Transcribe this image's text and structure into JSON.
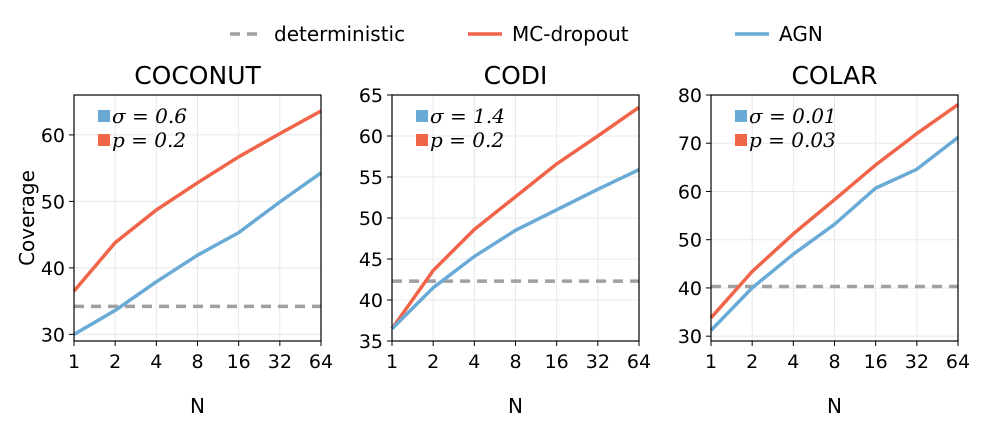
{
  "legend": {
    "items": [
      {
        "label": "deterministic",
        "color": "#a0a0a0",
        "style": "dashed"
      },
      {
        "label": "MC-dropout",
        "color": "#f06449",
        "style": "solid"
      },
      {
        "label": "AGN",
        "color": "#69aad6",
        "style": "solid"
      }
    ]
  },
  "chart_data": [
    {
      "type": "line",
      "title": "COCONUT",
      "xlabel": "N",
      "ylabel": "Coverage",
      "categories": [
        "1",
        "2",
        "4",
        "8",
        "16",
        "32",
        "64"
      ],
      "ylim": [
        29,
        66
      ],
      "yticks": [
        30,
        40,
        50,
        60
      ],
      "series": [
        {
          "name": "MC-dropout",
          "values": [
            36.5,
            43.8,
            48.7,
            52.8,
            56.7,
            60.2,
            63.6
          ]
        },
        {
          "name": "AGN",
          "values": [
            30.0,
            33.6,
            37.9,
            41.9,
            45.3,
            49.9,
            54.3
          ]
        }
      ],
      "deterministic": 34.2,
      "annotations": [
        {
          "text": "σ = 0.6",
          "color": "#69aad6"
        },
        {
          "text": "p = 0.2",
          "color": "#f06449"
        }
      ]
    },
    {
      "type": "line",
      "title": "CODI",
      "xlabel": "N",
      "ylabel": "",
      "categories": [
        "1",
        "2",
        "4",
        "8",
        "16",
        "32",
        "64"
      ],
      "ylim": [
        35,
        65
      ],
      "yticks": [
        35,
        40,
        45,
        50,
        55,
        60,
        65
      ],
      "series": [
        {
          "name": "MC-dropout",
          "values": [
            36.5,
            43.6,
            48.6,
            52.6,
            56.6,
            60.0,
            63.5
          ]
        },
        {
          "name": "AGN",
          "values": [
            36.5,
            41.5,
            45.3,
            48.5,
            51.0,
            53.5,
            55.9
          ]
        }
      ],
      "deterministic": 42.3,
      "annotations": [
        {
          "text": "σ = 1.4",
          "color": "#69aad6"
        },
        {
          "text": "p = 0.2",
          "color": "#f06449"
        }
      ]
    },
    {
      "type": "line",
      "title": "COLAR",
      "xlabel": "N",
      "ylabel": "",
      "categories": [
        "1",
        "2",
        "4",
        "8",
        "16",
        "32",
        "64"
      ],
      "ylim": [
        29,
        80
      ],
      "yticks": [
        30,
        40,
        50,
        60,
        70,
        80
      ],
      "series": [
        {
          "name": "MC-dropout",
          "values": [
            33.8,
            43.4,
            51.2,
            58.3,
            65.5,
            72.0,
            78.0
          ]
        },
        {
          "name": "AGN",
          "values": [
            31.2,
            40.0,
            47.0,
            53.2,
            60.7,
            64.6,
            71.2
          ]
        }
      ],
      "deterministic": 40.3,
      "annotations": [
        {
          "text": "σ = 0.01",
          "color": "#69aad6"
        },
        {
          "text": "p = 0.03",
          "color": "#f06449"
        }
      ]
    }
  ]
}
